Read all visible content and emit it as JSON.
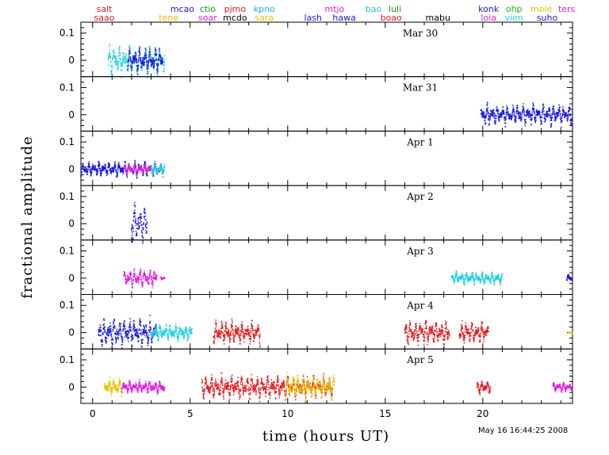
{
  "chart_data": {
    "type": "scatter",
    "xlabel": "time (hours UT)",
    "ylabel": "fractional amplitude",
    "xlim": [
      -0.6,
      24.6
    ],
    "ylim": [
      -0.06,
      0.14
    ],
    "x_ticks": [
      0,
      5,
      10,
      15,
      20
    ],
    "y_ticks": [
      0,
      0.1
    ],
    "grid": false,
    "timestamp": "May 16 16:44:25 2008",
    "sites": [
      {
        "code": "salt",
        "color": "#e41a1c",
        "x": 0.6,
        "row": 0
      },
      {
        "code": "saao",
        "color": "#e41a1c",
        "x": 0.6,
        "row": 1
      },
      {
        "code": "tene",
        "color": "#e8c000",
        "x": 3.9,
        "row": 1
      },
      {
        "code": "mcao",
        "color": "#1a1ad8",
        "x": 4.6,
        "row": 0
      },
      {
        "code": "ctio",
        "color": "#12a012",
        "x": 5.9,
        "row": 0
      },
      {
        "code": "soar",
        "color": "#e020e0",
        "x": 5.9,
        "row": 1
      },
      {
        "code": "pjmo",
        "color": "#e41a1c",
        "x": 7.3,
        "row": 0
      },
      {
        "code": "mcdo",
        "color": "#000000",
        "x": 7.3,
        "row": 1
      },
      {
        "code": "kpno",
        "color": "#20b0e0",
        "x": 8.8,
        "row": 0
      },
      {
        "code": "sara",
        "color": "#e8c000",
        "x": 8.8,
        "row": 1
      },
      {
        "code": "mtjo",
        "color": "#e020e0",
        "x": 12.4,
        "row": 0
      },
      {
        "code": "lash",
        "color": "#1a1ad8",
        "x": 11.3,
        "row": 1
      },
      {
        "code": "hawa",
        "color": "#1a1ad8",
        "x": 12.9,
        "row": 1
      },
      {
        "code": "bao",
        "color": "#20c0e0",
        "x": 14.4,
        "row": 0
      },
      {
        "code": "luli",
        "color": "#12a012",
        "x": 15.5,
        "row": 0
      },
      {
        "code": "boao",
        "color": "#e41a1c",
        "x": 15.3,
        "row": 1
      },
      {
        "code": "mabu",
        "color": "#000000",
        "x": 17.7,
        "row": 1
      },
      {
        "code": "konk",
        "color": "#1a1ad8",
        "x": 20.3,
        "row": 0
      },
      {
        "code": "loia",
        "color": "#e020e0",
        "x": 20.3,
        "row": 1
      },
      {
        "code": "ohp",
        "color": "#12c012",
        "x": 21.6,
        "row": 0
      },
      {
        "code": "vien",
        "color": "#20d0e0",
        "x": 21.6,
        "row": 1
      },
      {
        "code": "mole",
        "color": "#e8c000",
        "x": 23.0,
        "row": 0
      },
      {
        "code": "ters",
        "color": "#e020e0",
        "x": 24.3,
        "row": 0
      },
      {
        "code": "suho",
        "color": "#1a1ad8",
        "x": 23.3,
        "row": 1
      }
    ],
    "panels": [
      {
        "label": "Mar 30",
        "segments": [
          {
            "start": 0.8,
            "end": 3.7,
            "color": "#20d0e0",
            "amp": 0.035
          },
          {
            "start": 1.8,
            "end": 3.6,
            "color": "#1a1ad8",
            "amp": 0.03
          }
        ]
      },
      {
        "label": "Mar 31",
        "segments": [
          {
            "start": 19.9,
            "end": 24.6,
            "color": "#1a1ad8",
            "amp": 0.025
          }
        ]
      },
      {
        "label": "Apr 1",
        "segments": [
          {
            "start": -0.6,
            "end": 3.6,
            "color": "#1a1ad8",
            "amp": 0.018
          },
          {
            "start": 1.6,
            "end": 3.6,
            "color": "#e020e0",
            "amp": 0.012
          },
          {
            "start": 3.0,
            "end": 3.7,
            "color": "#20d0e0",
            "amp": 0.015
          }
        ]
      },
      {
        "label": "Apr 2",
        "segments": [
          {
            "start": 2.0,
            "end": 2.8,
            "color": "#1a1ad8",
            "amp": 0.045
          }
        ]
      },
      {
        "label": "Apr 3",
        "segments": [
          {
            "start": 1.6,
            "end": 3.3,
            "color": "#e020e0",
            "amp": 0.022
          },
          {
            "start": 3.5,
            "end": 3.7,
            "color": "#e020e0",
            "amp": 0.004
          },
          {
            "start": 18.4,
            "end": 21.0,
            "color": "#20d0e0",
            "amp": 0.015
          },
          {
            "start": 24.3,
            "end": 24.6,
            "color": "#1a1ad8",
            "amp": 0.01
          }
        ]
      },
      {
        "label": "Apr 4",
        "segments": [
          {
            "start": 0.3,
            "end": 3.3,
            "color": "#1a1ad8",
            "amp": 0.035
          },
          {
            "start": 3.0,
            "end": 5.1,
            "color": "#20d0e0",
            "amp": 0.02
          },
          {
            "start": 6.2,
            "end": 8.6,
            "color": "#e41a1c",
            "amp": 0.028
          },
          {
            "start": 16.0,
            "end": 18.3,
            "color": "#e41a1c",
            "amp": 0.03
          },
          {
            "start": 18.8,
            "end": 20.3,
            "color": "#e41a1c",
            "amp": 0.028
          },
          {
            "start": 24.4,
            "end": 24.6,
            "color": "#e8c000",
            "amp": 0.003
          }
        ]
      },
      {
        "label": "Apr 5",
        "segments": [
          {
            "start": 0.6,
            "end": 1.5,
            "color": "#e8c000",
            "amp": 0.02
          },
          {
            "start": 1.5,
            "end": 3.7,
            "color": "#e020e0",
            "amp": 0.015
          },
          {
            "start": 5.6,
            "end": 12.3,
            "color": "#e41a1c",
            "amp": 0.028
          },
          {
            "start": 9.9,
            "end": 12.4,
            "color": "#e8c000",
            "amp": 0.028
          },
          {
            "start": 19.7,
            "end": 20.4,
            "color": "#e41a1c",
            "amp": 0.015
          },
          {
            "start": 23.6,
            "end": 24.6,
            "color": "#e020e0",
            "amp": 0.012
          }
        ]
      }
    ]
  }
}
